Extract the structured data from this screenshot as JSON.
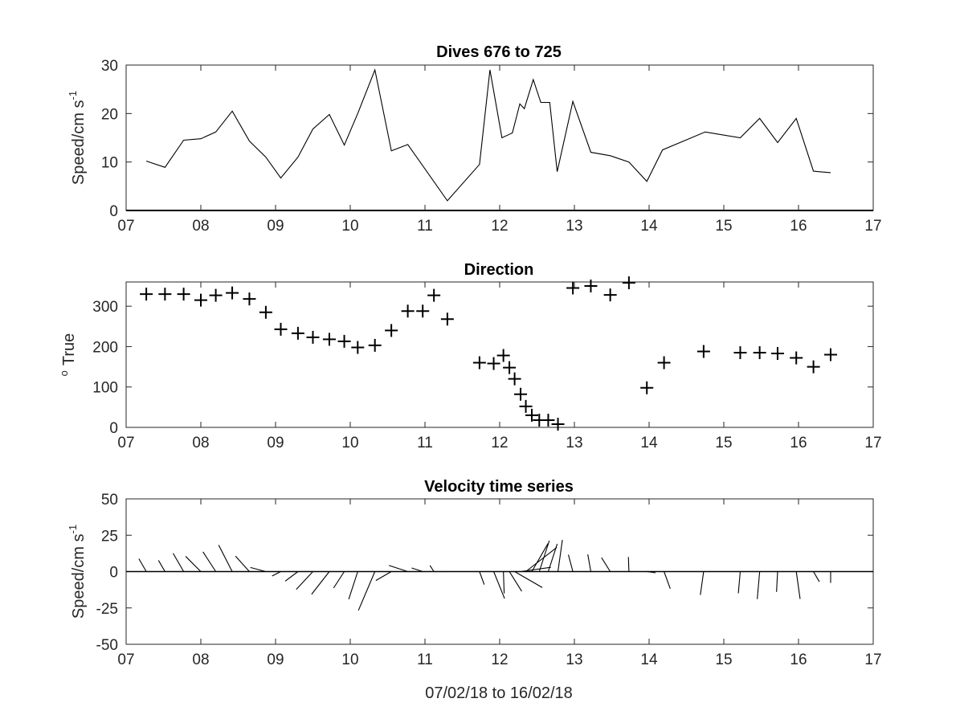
{
  "chart_data": [
    {
      "type": "line",
      "title": "Dives 676 to 725",
      "ylabel": "Speed/cm s",
      "ylabel_superscript": "-1",
      "xlim": [
        7,
        17
      ],
      "ylim": [
        0,
        30
      ],
      "x_ticks": [
        7,
        8,
        9,
        10,
        11,
        12,
        13,
        14,
        15,
        16,
        17
      ],
      "x_tick_labels": [
        "07",
        "08",
        "09",
        "10",
        "11",
        "12",
        "13",
        "14",
        "15",
        "16",
        "17"
      ],
      "y_ticks": [
        0,
        10,
        20,
        30
      ],
      "y_tick_labels": [
        "0",
        "10",
        "20",
        "30"
      ],
      "series": [
        {
          "x": [
            7.27,
            7.52,
            7.77,
            8.0,
            8.2,
            8.42,
            8.65,
            8.87,
            9.07,
            9.3,
            9.5,
            9.72,
            9.92,
            10.1,
            10.33,
            10.55,
            10.77,
            11.3,
            11.73,
            11.87,
            12.03,
            12.17,
            12.27,
            12.33,
            12.45,
            12.55,
            12.67,
            12.77,
            12.98,
            13.22,
            13.48,
            13.73,
            13.97,
            14.18,
            14.75,
            15.22,
            15.48,
            15.72,
            15.97,
            16.2,
            16.43
          ],
          "y": [
            10.2,
            8.9,
            14.5,
            14.8,
            16.2,
            20.5,
            14.3,
            11.0,
            6.7,
            11.0,
            16.8,
            19.8,
            13.5,
            20.0,
            29.0,
            12.3,
            13.6,
            2.0,
            9.5,
            29.0,
            15.0,
            16.0,
            22.0,
            21.0,
            27.0,
            22.3,
            22.3,
            8.0,
            22.5,
            12.0,
            11.3,
            10.0,
            6.0,
            12.5,
            16.2,
            15.0,
            19.0,
            14.0,
            19.0,
            8.1,
            7.8
          ]
        }
      ]
    },
    {
      "type": "scatter",
      "title": "Direction",
      "ylabel": "True",
      "ylabel_prefix": "o",
      "xlim": [
        7,
        17
      ],
      "ylim": [
        0,
        360
      ],
      "x_ticks": [
        7,
        8,
        9,
        10,
        11,
        12,
        13,
        14,
        15,
        16,
        17
      ],
      "x_tick_labels": [
        "07",
        "08",
        "09",
        "10",
        "11",
        "12",
        "13",
        "14",
        "15",
        "16",
        "17"
      ],
      "y_ticks": [
        0,
        100,
        200,
        300
      ],
      "y_tick_labels": [
        "0",
        "100",
        "200",
        "300"
      ],
      "marker": "plus",
      "series": [
        {
          "x": [
            7.27,
            7.52,
            7.77,
            8.0,
            8.2,
            8.42,
            8.65,
            8.87,
            9.07,
            9.3,
            9.5,
            9.72,
            9.92,
            10.1,
            10.33,
            10.55,
            10.77,
            10.97,
            11.12,
            11.3,
            11.73,
            11.92,
            12.05,
            12.13,
            12.2,
            12.28,
            12.35,
            12.43,
            12.53,
            12.65,
            12.78,
            12.98,
            13.22,
            13.48,
            13.73,
            13.97,
            14.2,
            14.73,
            15.22,
            15.48,
            15.72,
            15.97,
            16.2,
            16.43
          ],
          "y": [
            330,
            330,
            330,
            315,
            327,
            333,
            318,
            285,
            243,
            233,
            223,
            218,
            213,
            198,
            203,
            240,
            288,
            288,
            327,
            268,
            160,
            158,
            178,
            148,
            120,
            82,
            52,
            30,
            18,
            18,
            8,
            345,
            350,
            328,
            358,
            98,
            160,
            188,
            185,
            185,
            183,
            172,
            150,
            180
          ]
        }
      ]
    },
    {
      "type": "line",
      "subtype": "stick-plot",
      "title": "Velocity time series",
      "ylabel": "Speed/cm s",
      "ylabel_superscript": "-1",
      "xlabel": "07/02/18 to 16/02/18",
      "xlim": [
        7,
        17
      ],
      "ylim": [
        -50,
        50
      ],
      "x_ticks": [
        7,
        8,
        9,
        10,
        11,
        12,
        13,
        14,
        15,
        16,
        17
      ],
      "x_tick_labels": [
        "07",
        "08",
        "09",
        "10",
        "11",
        "12",
        "13",
        "14",
        "15",
        "16",
        "17"
      ],
      "y_ticks": [
        -50,
        -25,
        0,
        25,
        50
      ],
      "y_tick_labels": [
        "-50",
        "-25",
        "0",
        "25",
        "50"
      ],
      "sticks": {
        "x": [
          7.27,
          7.52,
          7.77,
          8.0,
          8.2,
          8.42,
          8.65,
          8.87,
          9.07,
          9.3,
          9.5,
          9.72,
          9.92,
          10.1,
          10.33,
          10.55,
          10.77,
          10.97,
          11.12,
          11.3,
          11.73,
          11.92,
          12.05,
          12.13,
          12.2,
          12.28,
          12.35,
          12.43,
          12.53,
          12.65,
          12.78,
          12.98,
          13.22,
          13.48,
          13.73,
          13.97,
          14.2,
          14.73,
          15.22,
          15.48,
          15.72,
          15.97,
          16.2,
          16.43
        ],
        "speed": [
          10.2,
          8.9,
          14.5,
          14.8,
          16.2,
          20.5,
          14.3,
          11.0,
          6.7,
          11.0,
          16.8,
          19.8,
          13.5,
          20.0,
          29.0,
          12.3,
          13.6,
          8.0,
          5.0,
          2.0,
          9.5,
          20.0,
          15.0,
          16.0,
          22.0,
          21.0,
          27.0,
          22.3,
          22.3,
          20.0,
          22.0,
          12.0,
          12.0,
          11.3,
          10.0,
          6.0,
          12.5,
          16.2,
          15.0,
          19.0,
          14.0,
          19.0,
          8.1,
          7.8
        ],
        "direction": [
          330,
          330,
          330,
          315,
          327,
          333,
          318,
          285,
          243,
          233,
          223,
          218,
          213,
          198,
          203,
          240,
          288,
          288,
          327,
          268,
          160,
          158,
          178,
          148,
          120,
          82,
          52,
          30,
          18,
          18,
          8,
          345,
          350,
          328,
          358,
          98,
          160,
          188,
          185,
          185,
          183,
          172,
          150,
          180
        ]
      }
    }
  ]
}
